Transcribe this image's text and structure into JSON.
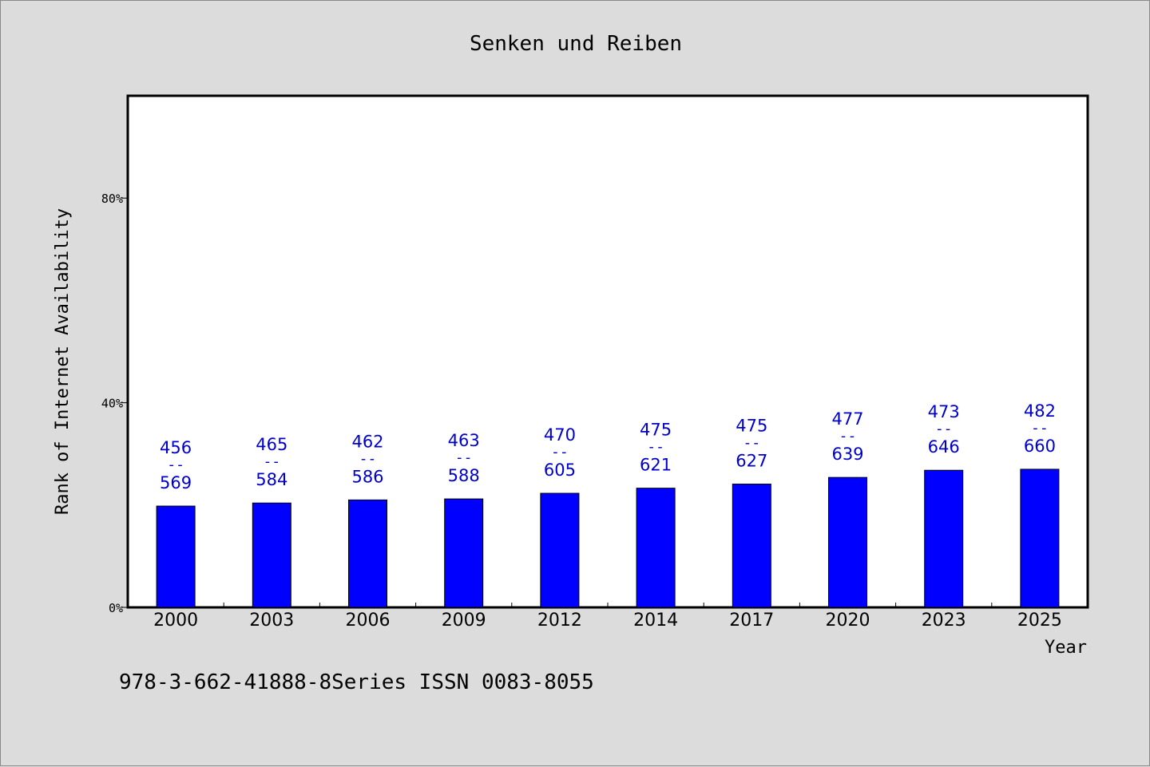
{
  "chart_data": {
    "type": "bar",
    "title": "Senken und Reiben",
    "xlabel": "Year",
    "ylabel": "Rank of Internet Availability",
    "categories": [
      "2000",
      "2003",
      "2006",
      "2009",
      "2012",
      "2014",
      "2017",
      "2020",
      "2023",
      "2025"
    ],
    "values": [
      19.8,
      20.4,
      21.0,
      21.2,
      22.3,
      23.3,
      24.1,
      25.4,
      26.8,
      27.0
    ],
    "data_labels": [
      [
        "456",
        "569"
      ],
      [
        "465",
        "584"
      ],
      [
        "462",
        "586"
      ],
      [
        "463",
        "588"
      ],
      [
        "470",
        "605"
      ],
      [
        "475",
        "621"
      ],
      [
        "475",
        "627"
      ],
      [
        "477",
        "639"
      ],
      [
        "473",
        "646"
      ],
      [
        "482",
        "660"
      ]
    ],
    "label_separator": "--",
    "yticks": [
      0,
      40,
      80
    ],
    "ytick_labels": [
      "0%",
      "40%",
      "80%"
    ],
    "ylim": [
      0,
      100
    ],
    "grid": false,
    "bar_color": "#0000ff",
    "label_color": "#0000cc",
    "footnote": "978-3-662-41888-8Series ISSN 0083-8055"
  }
}
